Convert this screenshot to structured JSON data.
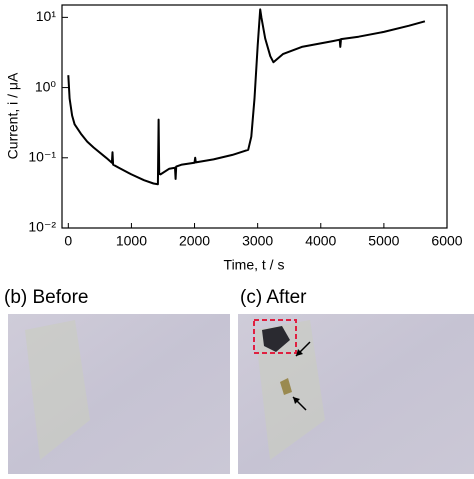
{
  "chart_data": {
    "type": "line",
    "xlabel": "Time, t / s",
    "ylabel": "Current, i / μA",
    "x": [
      0,
      20,
      60,
      100,
      200,
      300,
      400,
      600,
      690,
      700,
      710,
      800,
      1000,
      1200,
      1350,
      1420,
      1430,
      1440,
      1460,
      1600,
      1690,
      1700,
      1710,
      1800,
      2000,
      2010,
      2020,
      2300,
      2600,
      2850,
      2900,
      2950,
      3000,
      3040,
      3060,
      3120,
      3200,
      3250,
      3400,
      3700,
      4200,
      4300,
      4310,
      4320,
      4600,
      5000,
      5400,
      5650
    ],
    "values": [
      1.5,
      0.7,
      0.4,
      0.3,
      0.22,
      0.17,
      0.14,
      0.1,
      0.085,
      0.12,
      0.08,
      0.072,
      0.058,
      0.048,
      0.043,
      0.042,
      0.35,
      0.06,
      0.058,
      0.07,
      0.072,
      0.05,
      0.075,
      0.08,
      0.085,
      0.1,
      0.086,
      0.095,
      0.11,
      0.13,
      0.2,
      0.7,
      4,
      13,
      10,
      5,
      2.8,
      2.3,
      3,
      3.8,
      4.6,
      4.8,
      3.8,
      4.9,
      5.3,
      6.2,
      7.6,
      8.8
    ],
    "color": "#000000",
    "log_y": true,
    "xlim": [
      -100,
      6000
    ],
    "ylim": [
      0.01,
      15
    ],
    "xticks": [
      0,
      1000,
      2000,
      3000,
      4000,
      5000,
      6000
    ],
    "yticks": [
      {
        "value": 0.01,
        "label": "10⁻²"
      },
      {
        "value": 0.1,
        "label": "10⁻¹"
      },
      {
        "value": 1,
        "label": "10⁰"
      },
      {
        "value": 10,
        "label": "10¹"
      }
    ]
  },
  "panels": [
    {
      "label": "(b) Before"
    },
    {
      "label": "(c) After"
    }
  ]
}
